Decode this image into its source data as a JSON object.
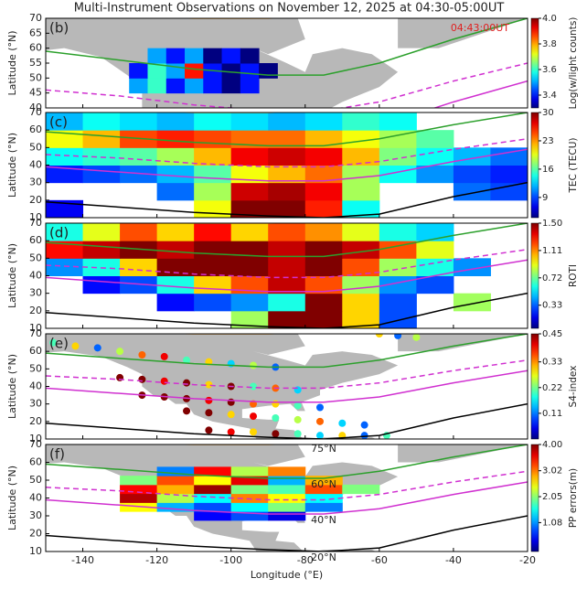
{
  "title": "Multi-Instrument Observations on November 12, 2025 at 04:30-05:00UT",
  "contours": [
    {
      "label": "75°N",
      "color": "#f0a030",
      "dashed": false,
      "x": [
        -150,
        -130,
        -110,
        -90,
        -75,
        -60,
        -40,
        -20
      ],
      "y": [
        73,
        71,
        70,
        70,
        71,
        73,
        76,
        80
      ]
    },
    {
      "label": "60°N",
      "color": "#2ca02c",
      "dashed": false,
      "x": [
        -150,
        -130,
        -110,
        -90,
        -75,
        -60,
        -40,
        -20
      ],
      "y": [
        59,
        56,
        53,
        51,
        51,
        55,
        63,
        70
      ]
    },
    {
      "color": "#d030d0",
      "dashed": true,
      "x": [
        -150,
        -130,
        -110,
        -90,
        -75,
        -60,
        -40,
        -20
      ],
      "y": [
        46,
        44,
        41,
        39,
        39,
        42,
        49,
        55
      ]
    },
    {
      "label": "40°N",
      "color": "#d030d0",
      "dashed": false,
      "x": [
        -150,
        -130,
        -110,
        -90,
        -75,
        -60,
        -40,
        -20
      ],
      "y": [
        39,
        36,
        33,
        31,
        31,
        34,
        42,
        49
      ]
    },
    {
      "label": "20°N",
      "color": "#000000",
      "dashed": false,
      "x": [
        -150,
        -130,
        -110,
        -90,
        -75,
        -60,
        -40,
        -20
      ],
      "y": [
        19,
        16,
        13,
        11,
        10,
        12,
        22,
        30
      ]
    }
  ],
  "chart_data": [
    {
      "type": "heatmap",
      "panel": "(b)",
      "annotation": "04:43:00UT",
      "land": true,
      "ylabel": "Latitude (°N)",
      "xlim": [
        -150,
        -20
      ],
      "xticks": [
        -140,
        -120,
        -100,
        -80,
        -60,
        -40,
        -20
      ],
      "ylim": [
        40,
        70
      ],
      "yticks": [
        40,
        45,
        50,
        55,
        60,
        65,
        70
      ],
      "colorbar": {
        "label": "Log(w/light counts)",
        "clim": [
          3.3,
          4.0
        ],
        "ticks": [
          {
            "value": 4.0,
            "label": "4.0"
          },
          3.8,
          3.6,
          3.4
        ]
      },
      "x": [
        -125,
        -120,
        -115,
        -110,
        -105,
        -100,
        -95,
        -90
      ],
      "y": [
        47.5,
        52.5,
        57.5
      ],
      "z": [
        [
          3.5,
          3.6,
          3.4,
          3.5,
          3.4,
          3.3,
          3.4,
          null
        ],
        [
          3.4,
          3.6,
          3.5,
          3.9,
          3.4,
          3.3,
          3.4,
          3.3
        ],
        [
          null,
          3.5,
          3.4,
          3.5,
          3.3,
          3.4,
          3.3,
          null
        ]
      ]
    },
    {
      "type": "heatmap",
      "panel": "(c)",
      "land": false,
      "ylabel": "Latitude (°N)",
      "xlim": [
        -150,
        -20
      ],
      "xticks": [
        -140,
        -120,
        -100,
        -80,
        -60,
        -40,
        -20
      ],
      "ylim": [
        10,
        70
      ],
      "yticks": [
        10,
        20,
        30,
        40,
        50,
        60,
        70
      ],
      "colorbar": {
        "label": "TEC (TECU)",
        "clim": [
          4,
          30
        ],
        "ticks": [
          30,
          23,
          16,
          9
        ]
      },
      "x": [
        -145,
        -135,
        -125,
        -115,
        -105,
        -95,
        -85,
        -75,
        -65,
        -55,
        -45,
        -35,
        -25
      ],
      "y": [
        15,
        25,
        35,
        45,
        55,
        65
      ],
      "z": [
        [
          7,
          null,
          null,
          null,
          20,
          30,
          30,
          26,
          14,
          null,
          null,
          null,
          null
        ],
        [
          null,
          null,
          null,
          10,
          18,
          28,
          29,
          27,
          18,
          null,
          null,
          10,
          9
        ],
        [
          8,
          9,
          10,
          12,
          16,
          20,
          22,
          24,
          18,
          14,
          11,
          9,
          8
        ],
        [
          14,
          15,
          16,
          18,
          22,
          27,
          28,
          27,
          22,
          17,
          14,
          12,
          10
        ],
        [
          20,
          22,
          25,
          26,
          25,
          24,
          24,
          22,
          20,
          18,
          16,
          null,
          null
        ],
        [
          12,
          14,
          13,
          12,
          14,
          13,
          12,
          13,
          15,
          14,
          null,
          null,
          null
        ]
      ]
    },
    {
      "type": "heatmap",
      "panel": "(d)",
      "land": false,
      "ylabel": "Latitude (°N)",
      "xlim": [
        -150,
        -20
      ],
      "xticks": [
        -140,
        -120,
        -100,
        -80,
        -60,
        -40,
        -20
      ],
      "ylim": [
        10,
        70
      ],
      "yticks": [
        10,
        20,
        30,
        40,
        50,
        60,
        70
      ],
      "colorbar": {
        "label": "ROTI",
        "clim": [
          0,
          1.5
        ],
        "ticks": [
          {
            "value": 1.5,
            "label": "1.50"
          },
          1.11,
          0.72,
          0.33
        ]
      },
      "x": [
        -145,
        -135,
        -125,
        -115,
        -105,
        -95,
        -85,
        -75,
        -65,
        -55,
        -45,
        -35,
        -25
      ],
      "y": [
        15,
        25,
        35,
        45,
        55,
        65
      ],
      "z": [
        [
          null,
          null,
          null,
          null,
          null,
          0.8,
          1.5,
          1.5,
          1.0,
          0.3,
          null,
          null,
          null
        ],
        [
          null,
          null,
          null,
          0.2,
          0.3,
          0.4,
          0.6,
          1.5,
          1.0,
          0.3,
          null,
          0.8,
          null
        ],
        [
          null,
          0.2,
          0.3,
          0.6,
          1.0,
          1.2,
          1.4,
          1.2,
          0.8,
          0.4,
          0.3,
          null,
          null
        ],
        [
          0.4,
          0.6,
          1.0,
          1.5,
          1.5,
          1.5,
          1.4,
          1.5,
          1.2,
          0.8,
          0.6,
          0.4,
          null
        ],
        [
          1.3,
          1.4,
          1.5,
          1.4,
          1.5,
          1.5,
          1.4,
          1.5,
          1.4,
          1.2,
          0.9,
          null,
          null
        ],
        [
          0.6,
          0.9,
          1.2,
          1.0,
          1.3,
          1.0,
          1.2,
          1.1,
          0.9,
          0.6,
          0.5,
          null,
          null
        ]
      ]
    },
    {
      "type": "scatter",
      "panel": "(e)",
      "land": true,
      "ylabel": "Latitude (°N)",
      "xlim": [
        -150,
        -20
      ],
      "xticks": [
        -140,
        -120,
        -100,
        -80,
        -60,
        -40,
        -20
      ],
      "ylim": [
        10,
        70
      ],
      "yticks": [
        10,
        20,
        30,
        40,
        50,
        60,
        70
      ],
      "colorbar": {
        "label": "S4-index",
        "clim": [
          0,
          0.45
        ],
        "ticks": [
          0.45,
          0.33,
          0.22,
          0.11
        ]
      },
      "x": [
        -148,
        -142,
        -136,
        -130,
        -124,
        -118,
        -112,
        -106,
        -100,
        -94,
        -88,
        -130,
        -124,
        -118,
        -112,
        -106,
        -100,
        -94,
        -88,
        -82,
        -124,
        -118,
        -112,
        -106,
        -100,
        -94,
        -88,
        -82,
        -76,
        -112,
        -106,
        -100,
        -94,
        -88,
        -82,
        -76,
        -70,
        -64,
        -106,
        -100,
        -94,
        -88,
        -82,
        -76,
        -70,
        -64,
        -58,
        -60,
        -55,
        -50
      ],
      "y": [
        65,
        63,
        62,
        60,
        58,
        57,
        55,
        54,
        53,
        52,
        51,
        45,
        44,
        43,
        42,
        41,
        40,
        40,
        39,
        38,
        35,
        34,
        33,
        32,
        31,
        30,
        30,
        29,
        28,
        26,
        25,
        24,
        23,
        22,
        21,
        20,
        19,
        18,
        15,
        14,
        14,
        13,
        13,
        12,
        12,
        12,
        12,
        70,
        69,
        68
      ],
      "values": [
        0.2,
        0.3,
        0.1,
        0.25,
        0.35,
        0.4,
        0.2,
        0.3,
        0.15,
        0.25,
        0.1,
        0.45,
        0.45,
        0.4,
        0.45,
        0.3,
        0.45,
        0.2,
        0.35,
        0.15,
        0.45,
        0.45,
        0.45,
        0.4,
        0.45,
        0.35,
        0.3,
        0.2,
        0.1,
        0.45,
        0.45,
        0.3,
        0.4,
        0.2,
        0.25,
        0.35,
        0.15,
        0.1,
        0.45,
        0.4,
        0.3,
        0.45,
        0.2,
        0.15,
        0.3,
        0.1,
        0.2,
        0.3,
        0.1,
        0.25
      ]
    },
    {
      "type": "heatmap",
      "panel": "(f)",
      "land": true,
      "ylabel": "Latitude (°N)",
      "xlabel": "Longitude (°E)",
      "xlim": [
        -150,
        -20
      ],
      "xticks": [
        -140,
        -120,
        -100,
        -80,
        -60,
        -40,
        -20
      ],
      "ylim": [
        10,
        70
      ],
      "yticks": [
        10,
        20,
        30,
        40,
        50,
        60,
        70
      ],
      "colorbar": {
        "label": "PP errors(m)",
        "clim": [
          0,
          4
        ],
        "ticks": [
          {
            "value": 4,
            "label": "4.00"
          },
          3.02,
          2.05,
          1.08
        ]
      },
      "x": [
        -125,
        -115,
        -105,
        -95,
        -85,
        -75,
        -65
      ],
      "y": [
        30,
        35,
        40,
        45,
        50,
        55
      ],
      "z": [
        [
          null,
          null,
          0.5,
          0.8,
          0.4,
          null,
          null
        ],
        [
          2.5,
          1.2,
          0.8,
          1.5,
          2.0,
          1.0,
          null
        ],
        [
          3.8,
          2.2,
          1.5,
          3.0,
          2.5,
          1.5,
          null
        ],
        [
          3.5,
          2.8,
          3.9,
          2.0,
          1.8,
          3.2,
          2.0
        ],
        [
          2.0,
          3.2,
          2.5,
          3.6,
          1.2,
          2.8,
          null
        ],
        [
          null,
          1.0,
          3.5,
          2.2,
          3.0,
          null,
          null
        ]
      ]
    }
  ]
}
